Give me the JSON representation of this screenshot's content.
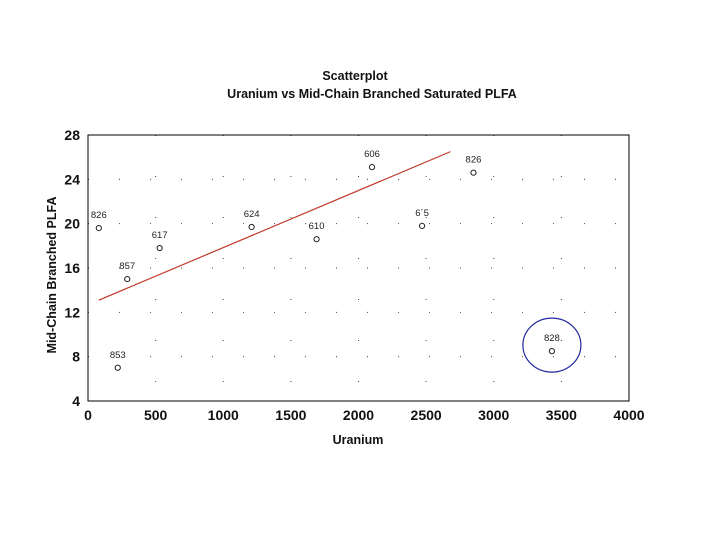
{
  "chart_data": {
    "type": "scatter",
    "title": "Scatterplot",
    "subtitle": "Uranium vs Mid-Chain Branched Saturated PLFA",
    "xlabel": "Uranium",
    "ylabel": "Mid-Chain Branched PLFA",
    "xlim": [
      0,
      4000
    ],
    "ylim": [
      4,
      28
    ],
    "xticks": [
      "0",
      "500",
      "1000",
      "1500",
      "2000",
      "2500",
      "3000",
      "3500",
      "4000"
    ],
    "yticks": [
      "4",
      "8",
      "12",
      "16",
      "20",
      "24",
      "28"
    ],
    "grid": "dotted",
    "points": [
      {
        "label": "826",
        "x": 80,
        "y": 19.6
      },
      {
        "label": "617",
        "x": 530,
        "y": 17.8
      },
      {
        "label": "857",
        "x": 290,
        "y": 15.0
      },
      {
        "label": "853",
        "x": 220,
        "y": 7.0
      },
      {
        "label": "624",
        "x": 1210,
        "y": 19.7
      },
      {
        "label": "610",
        "x": 1690,
        "y": 18.6
      },
      {
        "label": "606",
        "x": 2100,
        "y": 25.1
      },
      {
        "label": "6´5",
        "x": 2470,
        "y": 19.8
      },
      {
        "label": "826",
        "x": 2850,
        "y": 24.6
      },
      {
        "label": "828",
        "x": 3430,
        "y": 8.5
      }
    ],
    "trendline": {
      "x": [
        80,
        2680
      ],
      "y": [
        13.1,
        26.5
      ],
      "color": "#c0392b"
    },
    "highlight": {
      "point_label": "828",
      "color": "#1f2a9c"
    },
    "point_marker_color": "#222222"
  }
}
